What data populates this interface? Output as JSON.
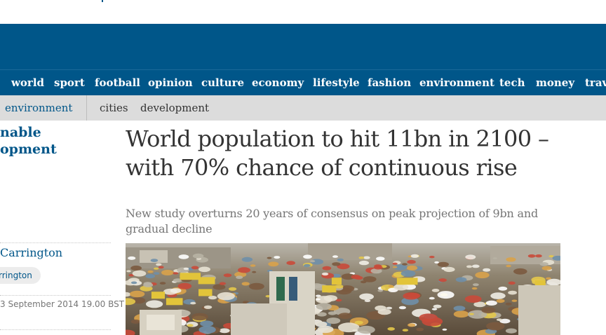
{
  "nav": {
    "items": [
      "world",
      "sport",
      "football",
      "opinion",
      "culture",
      "economy",
      "lifestyle",
      "fashion",
      "environment",
      "tech",
      "money",
      "travel"
    ]
  },
  "subnav": {
    "section": "environment",
    "items": [
      "cities",
      "development"
    ]
  },
  "series": {
    "line1": "nable",
    "line2": "opment"
  },
  "article": {
    "headline": "World population to hit 11bn in 2100 – with 70% chance of continuous rise",
    "standfirst": "New study overturns 20 years of consensus on peak projection of 9bn and gradual decline",
    "byline": "Carrington",
    "author_tag": "rrington",
    "dateline": "3 September 2014 19.00 BST"
  },
  "colors": {
    "brand": "#005689",
    "subnav_bg": "#dcdcdc",
    "headline": "#333333",
    "standfirst": "#767676"
  },
  "photo": {
    "icon": "crowded-market-photo"
  }
}
